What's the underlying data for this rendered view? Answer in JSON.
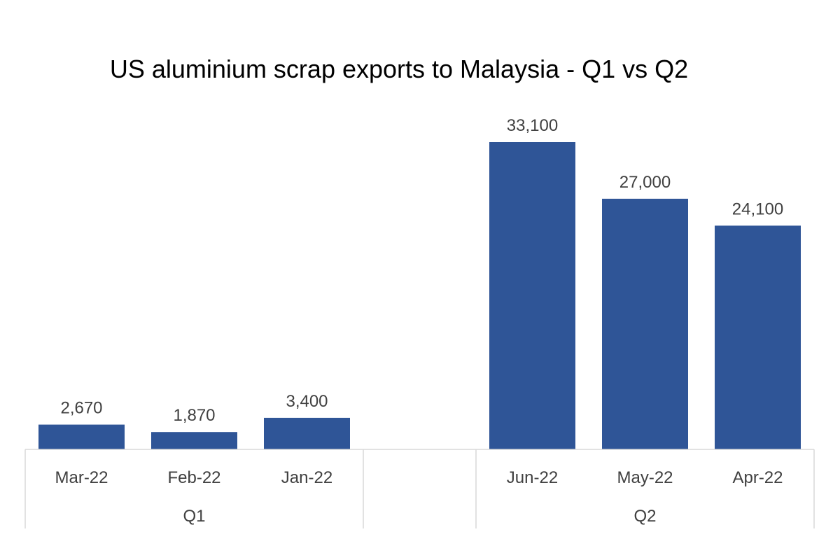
{
  "chart_data": {
    "type": "bar",
    "title": "US aluminium scrap exports to Malaysia - Q1 vs Q2",
    "xlabel": "",
    "ylabel": "",
    "ylim": [
      0,
      35000
    ],
    "grid": false,
    "legend": "none",
    "bar_color": "#2F5597",
    "groups": [
      {
        "name": "Q1",
        "categories": [
          "Mar-22",
          "Feb-22",
          "Jan-22"
        ],
        "values": [
          2670,
          1870,
          3400
        ],
        "labels": [
          "2,670",
          "1,870",
          "3,400"
        ]
      },
      {
        "name": "Q2",
        "categories": [
          "Jun-22",
          "May-22",
          "Apr-22"
        ],
        "values": [
          33100,
          27000,
          24100
        ],
        "labels": [
          "33,100",
          "27,000",
          "24,100"
        ]
      }
    ]
  }
}
